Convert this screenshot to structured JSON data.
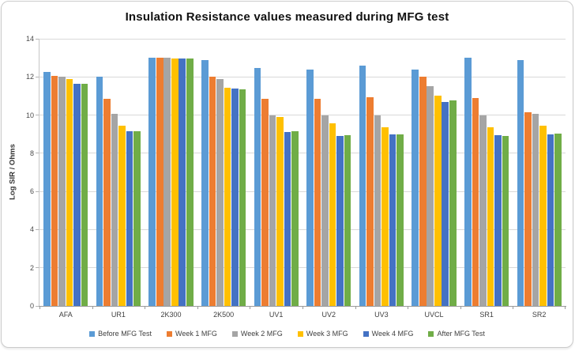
{
  "chart_data": {
    "type": "bar",
    "title": "Insulation Resistance values measured during MFG test",
    "xlabel": "",
    "ylabel": "Log SIR / Ohms",
    "ylim": [
      0,
      14
    ],
    "ytick_labels": [
      "0",
      "2",
      "4",
      "6",
      "8",
      "10",
      "12",
      "14"
    ],
    "grid": true,
    "legend_position": "bottom",
    "categories": [
      "AFA",
      "UR1",
      "2K300",
      "2K500",
      "UV1",
      "UV2",
      "UV3",
      "UVCL",
      "SR1",
      "SR2"
    ],
    "series": [
      {
        "name": "Before MFG Test",
        "color": "#5B9BD5",
        "values": [
          12.25,
          12.0,
          13.0,
          12.9,
          12.45,
          12.4,
          12.6,
          12.4,
          13.0,
          12.9
        ]
      },
      {
        "name": "Week 1 MFG",
        "color": "#ED7D31",
        "values": [
          12.05,
          10.85,
          13.0,
          12.0,
          10.85,
          10.85,
          10.95,
          12.0,
          10.9,
          10.15
        ]
      },
      {
        "name": "Week 2 MFG",
        "color": "#A5A5A5",
        "values": [
          12.0,
          10.05,
          13.0,
          11.9,
          10.0,
          10.0,
          10.0,
          11.5,
          10.0,
          10.05
        ]
      },
      {
        "name": "Week 3 MFG",
        "color": "#FFC000",
        "values": [
          11.9,
          9.45,
          12.95,
          11.45,
          9.9,
          9.55,
          9.35,
          11.0,
          9.35,
          9.45
        ]
      },
      {
        "name": "Week 4 MFG",
        "color": "#4472C4",
        "values": [
          11.65,
          9.15,
          12.95,
          11.4,
          9.1,
          8.9,
          9.0,
          10.7,
          8.95,
          9.0
        ]
      },
      {
        "name": "After MFG Test",
        "color": "#70AD47",
        "values": [
          11.65,
          9.15,
          12.95,
          11.35,
          9.15,
          8.95,
          9.0,
          10.75,
          8.9,
          9.05
        ]
      }
    ]
  }
}
